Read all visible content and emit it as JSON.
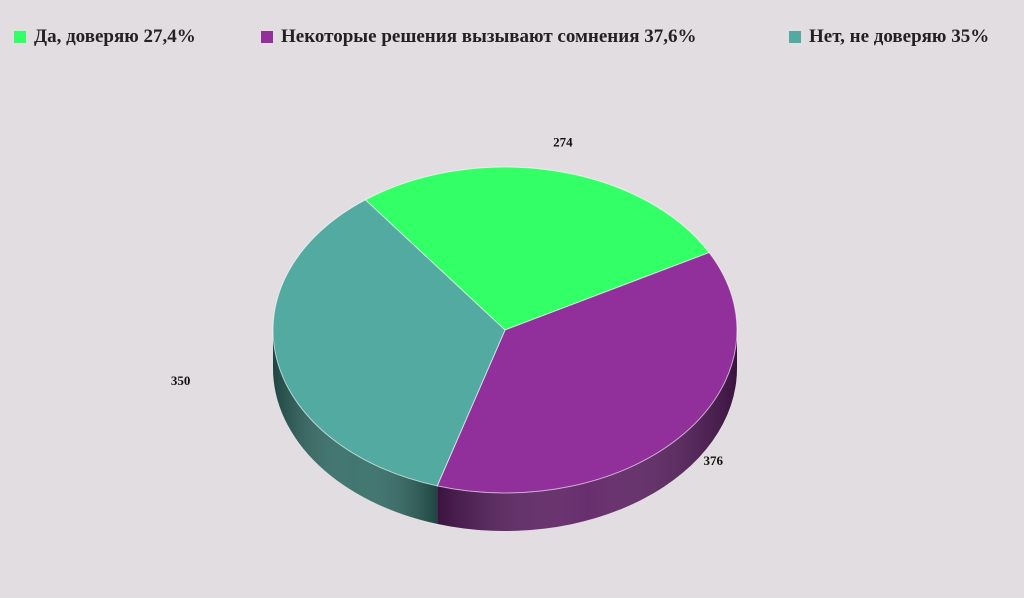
{
  "chart_data": {
    "type": "pie",
    "style": "3d",
    "legend_position": "top",
    "categories": [
      "Да, доверяю 27,4%",
      "Некоторые решения вызывают сомнения 37,6%",
      "Нет, не доверяю 35%"
    ],
    "values": [
      274,
      376,
      350
    ],
    "data_labels": [
      "274",
      "376",
      "350"
    ],
    "colors": [
      "#33ff66",
      "#912f9b",
      "#52aaa1"
    ],
    "side_colors": [
      "#1e8a33",
      "#5a1d61",
      "#2f6a64"
    ]
  }
}
